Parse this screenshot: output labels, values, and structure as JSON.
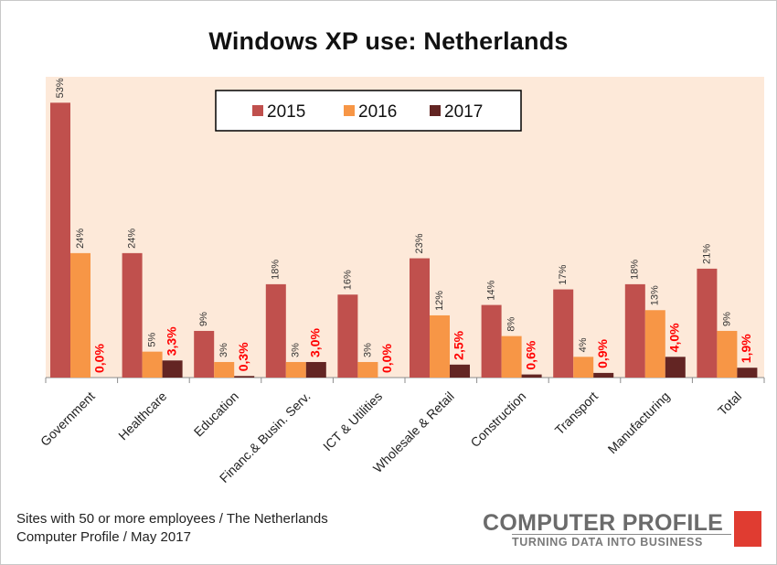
{
  "chart_data": {
    "type": "bar",
    "title": "Windows XP use: Netherlands",
    "categories": [
      "Government",
      "Healthcare",
      "Education",
      "Financ.& Busin. Serv.",
      "ICT & Utilities",
      "Wholesale & Retail",
      "Construction",
      "Transport",
      "Manufacturing",
      "Total"
    ],
    "series": [
      {
        "name": "2015",
        "color": "#c0504d",
        "values": [
          53,
          24,
          9,
          18,
          16,
          23,
          14,
          17,
          18,
          21
        ],
        "labels": [
          "53%",
          "24%",
          "9%",
          "18%",
          "16%",
          "23%",
          "14%",
          "17%",
          "18%",
          "21%"
        ]
      },
      {
        "name": "2016",
        "color": "#f79646",
        "values": [
          24,
          5,
          3,
          3,
          3,
          12,
          8,
          4,
          13,
          9
        ],
        "labels": [
          "24%",
          "5%",
          "3%",
          "3%",
          "3%",
          "12%",
          "8%",
          "4%",
          "13%",
          "9%"
        ]
      },
      {
        "name": "2017",
        "color": "#632523",
        "values": [
          0.0,
          3.3,
          0.3,
          3.0,
          0.0,
          2.5,
          0.6,
          0.9,
          4.0,
          1.9
        ],
        "labels": [
          "0,0%",
          "3,3%",
          "0,3%",
          "3,0%",
          "0,0%",
          "2,5%",
          "0,6%",
          "0,9%",
          "4,0%",
          "1,9%"
        ],
        "label_color": "#ff0000"
      }
    ],
    "ylim": [
      0,
      58
    ],
    "xlabel": "",
    "ylabel": "",
    "legend_position": "top-center",
    "plot_background": "#fde9d9",
    "grid": false
  },
  "footnote": [
    "Sites with 50 or more employees / The Netherlands",
    "Computer Profile / May 2017"
  ],
  "logo": {
    "name": "COMPUTER PROFILE",
    "tagline": "TURNING DATA INTO BUSINESS",
    "accent": "#e03c31"
  }
}
